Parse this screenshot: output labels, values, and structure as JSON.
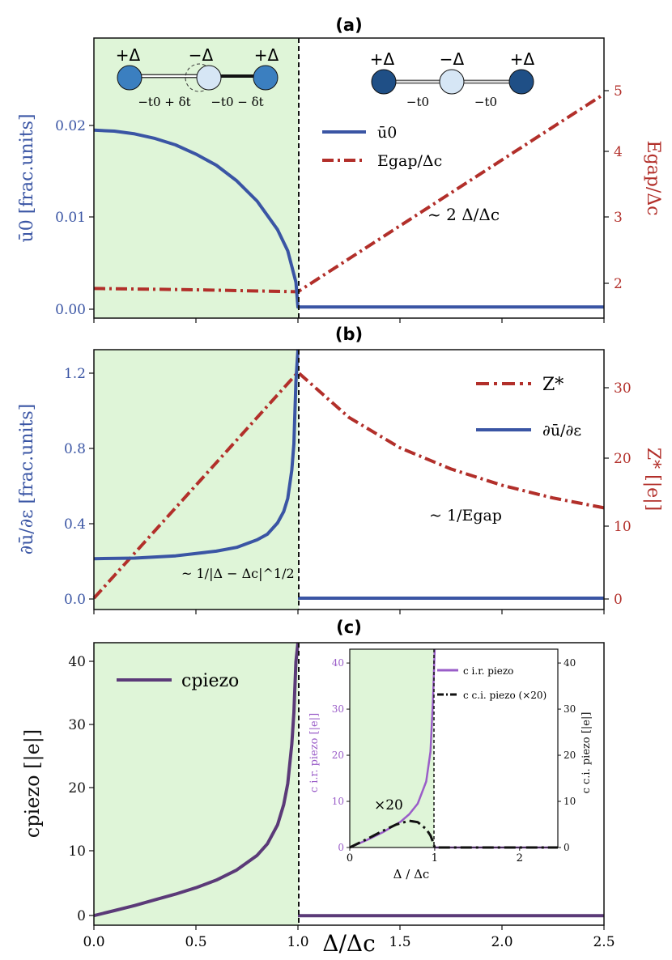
{
  "colors": {
    "blue": "#3a55a4",
    "red": "#b22f2a",
    "purple": "#5b3a78",
    "violet": "#9a5dc8",
    "black": "#111111",
    "green_fill": "#dff5d8",
    "atom_dark": "#1f4f86",
    "atom_light": "#d6e6f5",
    "atom_mid": "#3b7fc0"
  },
  "x_ticks": [
    "0.0",
    "0.5",
    "1.0",
    "1.5",
    "2.0",
    "2.5"
  ],
  "x_label": "Δ/Δc",
  "chart_data": [
    {
      "panel": "(a)",
      "type": "line",
      "xlim": [
        0,
        2.5
      ],
      "ylim_left": [
        -0.0012,
        0.0292
      ],
      "ylim_right": [
        1.6,
        5.85
      ],
      "yticks_left": [
        "0.00",
        "0.01",
        "0.02"
      ],
      "yticks_right": [
        "2",
        "3",
        "4",
        "5"
      ],
      "ylabel_left": "ū0 [frac.units]",
      "ylabel_right": "Egap/Δc",
      "legend": [
        "ū0",
        "Egap/Δc"
      ],
      "legend_position": "center",
      "annotation": "~ 2 Δ/Δc",
      "chain_labels": {
        "left": {
          "charges": [
            "+Δ",
            "−Δ",
            "+Δ"
          ],
          "bonds": [
            "−t0 + δt",
            "−t0 − δt"
          ]
        },
        "right": {
          "charges": [
            "+Δ",
            "−Δ",
            "+Δ"
          ],
          "bonds": [
            "−t0",
            "−t0"
          ]
        }
      },
      "series": [
        {
          "name": "ū0",
          "axis": "left",
          "style": "solid",
          "x": [
            0,
            0.1,
            0.2,
            0.3,
            0.4,
            0.5,
            0.6,
            0.7,
            0.8,
            0.9,
            0.95,
            0.99,
            1.0,
            1.0,
            1.5,
            2.0,
            2.5
          ],
          "y": [
            0.0192,
            0.0191,
            0.0188,
            0.0183,
            0.0176,
            0.0166,
            0.0154,
            0.0137,
            0.0115,
            0.0084,
            0.0061,
            0.0027,
            0,
            0,
            0,
            0,
            0
          ]
        },
        {
          "name": "Egap/Δc",
          "axis": "right",
          "style": "dashdot",
          "x": [
            0,
            0.5,
            1.0,
            1.5,
            2.0,
            2.5
          ],
          "y": [
            2.05,
            2.03,
            2.0,
            3.0,
            4.0,
            5.0
          ]
        }
      ]
    },
    {
      "panel": "(b)",
      "type": "line",
      "xlim": [
        0,
        2.5
      ],
      "ylim_left": [
        -0.06,
        1.32
      ],
      "ylim_right": [
        -1.6,
        35.2
      ],
      "yticks_left": [
        "0.0",
        "0.4",
        "0.8",
        "1.2"
      ],
      "yticks_right": [
        "0",
        "10",
        "20",
        "30"
      ],
      "ylabel_left": "∂ū/∂ε [frac.units]",
      "ylabel_right": "Z* [|e|]",
      "legend": [
        "Z*",
        "∂ū/∂ε"
      ],
      "legend_position": "upper right",
      "annotations": [
        "~ 1/Egap",
        "~ 1/|Δ − Δc|^1/2"
      ],
      "series": [
        {
          "name": "Z*",
          "axis": "right",
          "style": "dashdot",
          "x": [
            0,
            0.25,
            0.5,
            0.75,
            1.0,
            1.25,
            1.5,
            1.75,
            2.0,
            2.25,
            2.5
          ],
          "y": [
            0,
            8,
            16,
            24,
            32,
            25.6,
            21.3,
            18.3,
            16.0,
            14.2,
            12.8
          ]
        },
        {
          "name": "∂ū/∂ε",
          "axis": "left",
          "style": "solid",
          "x": [
            0,
            0.2,
            0.4,
            0.6,
            0.7,
            0.8,
            0.85,
            0.9,
            0.93,
            0.95,
            0.97,
            0.98,
            0.99,
            1.0,
            1.0,
            1.5,
            2.0,
            2.5
          ],
          "y": [
            0.21,
            0.213,
            0.225,
            0.25,
            0.27,
            0.31,
            0.34,
            0.4,
            0.46,
            0.53,
            0.68,
            0.82,
            1.15,
            1.32,
            0,
            0,
            0,
            0
          ]
        }
      ]
    },
    {
      "panel": "(c)",
      "type": "line",
      "xlim": [
        0,
        2.5
      ],
      "ylim": [
        -1.5,
        43
      ],
      "yticks": [
        "0",
        "10",
        "20",
        "30",
        "40"
      ],
      "ylabel": "cpiezo [|e|]",
      "legend": [
        "cpiezo"
      ],
      "legend_position": "upper left",
      "series": [
        {
          "name": "cpiezo",
          "style": "solid",
          "x": [
            0,
            0.1,
            0.2,
            0.3,
            0.4,
            0.5,
            0.6,
            0.7,
            0.8,
            0.85,
            0.9,
            0.93,
            0.95,
            0.97,
            0.98,
            0.99,
            1.0,
            1.0,
            1.5,
            2.0,
            2.5
          ],
          "y": [
            0,
            0.8,
            1.6,
            2.5,
            3.4,
            4.4,
            5.6,
            7.2,
            9.5,
            11.3,
            14.3,
            17.5,
            20.8,
            27.0,
            32.0,
            40.0,
            44.0,
            0,
            0,
            0,
            0
          ]
        }
      ],
      "inset": {
        "type": "line",
        "xlim": [
          0,
          2.45
        ],
        "ylim": [
          0,
          43
        ],
        "xticks": [
          "0",
          "1",
          "2"
        ],
        "yticks_left": [
          "0",
          "10",
          "20",
          "30",
          "40"
        ],
        "yticks_right": [
          "0",
          "10",
          "20",
          "30",
          "40"
        ],
        "xlabel": "Δ / Δc",
        "ylabel_left": "c i.r. piezo [|e|]",
        "ylabel_right": "c c.i. piezo [|e|]",
        "legend": [
          "c i.r. piezo",
          "c c.i. piezo (×20)"
        ],
        "annotation": "×20",
        "series": [
          {
            "name": "c i.r. piezo",
            "style": "solid",
            "x": [
              0,
              0.2,
              0.4,
              0.6,
              0.7,
              0.8,
              0.9,
              0.95,
              0.98,
              1.0,
              1.0,
              1.5,
              2.0,
              2.45
            ],
            "y": [
              0,
              1.6,
              3.4,
              5.6,
              7.2,
              9.5,
              14.3,
              20.8,
              32.0,
              44.0,
              0,
              0,
              0,
              0
            ]
          },
          {
            "name": "c c.i. piezo (×20)",
            "style": "dashdot",
            "x": [
              0,
              0.2,
              0.4,
              0.55,
              0.7,
              0.8,
              0.9,
              0.95,
              0.98,
              1.0,
              1.0,
              1.5,
              2.0,
              2.45
            ],
            "y": [
              0,
              1.8,
              3.7,
              5.0,
              5.8,
              5.5,
              4.0,
              2.6,
              1.2,
              0,
              0,
              0,
              0,
              0
            ]
          }
        ]
      }
    }
  ]
}
